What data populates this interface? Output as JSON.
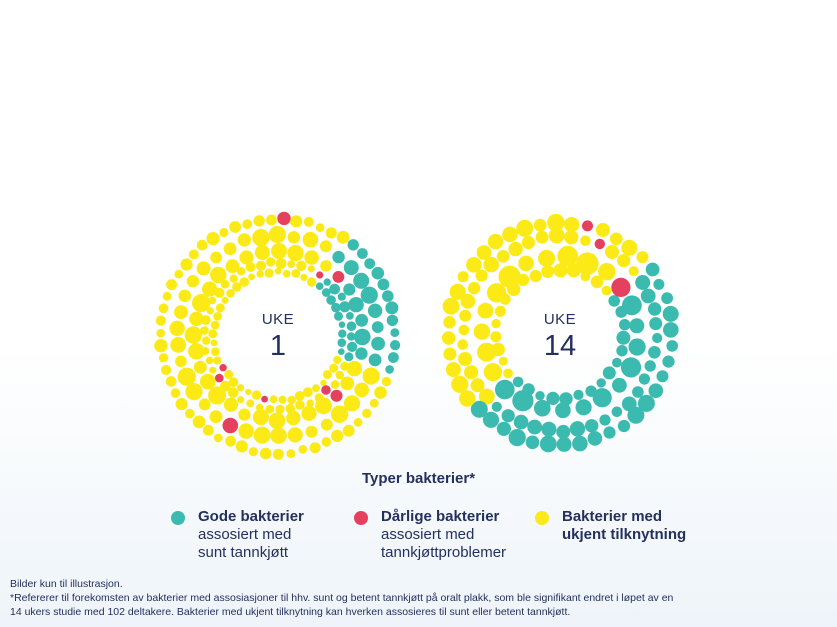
{
  "chart_data": [
    {
      "type": "donut-bubble",
      "center_label": {
        "line1": "UKE",
        "line2": "1"
      },
      "series": [
        {
          "name": "Gode bakterier",
          "share": 0.21
        },
        {
          "name": "Dårlige bakterier",
          "share": 0.03
        },
        {
          "name": "Bakterier med ukjent tilknytning",
          "share": 0.76
        }
      ]
    },
    {
      "type": "donut-bubble",
      "center_label": {
        "line1": "UKE",
        "line2": "14"
      },
      "series": [
        {
          "name": "Gode bakterier",
          "share": 0.48
        },
        {
          "name": "Dårlige bakterier",
          "share": 0.01
        },
        {
          "name": "Bakterier med ukjent tilknytning",
          "share": 0.51
        }
      ]
    }
  ],
  "colors": {
    "good": "#3bbab0",
    "bad": "#e5405e",
    "unknown": "#fbea16",
    "text": "#24305e"
  },
  "legend": {
    "title": "Typer bakterier*",
    "items": [
      {
        "bold": "Gode bakterier",
        "normal_1": "assosiert med",
        "normal_2": "sunt tannkjøtt",
        "color": "#3bbab0"
      },
      {
        "bold": "Dårlige bakterier",
        "normal_1": "assosiert med",
        "normal_2": "tannkjøttproblemer",
        "color": "#e5405e"
      },
      {
        "bold_1": "Bakterier med",
        "bold_2": "ukjent tilknytning",
        "color": "#fbea16"
      }
    ]
  },
  "footnotes": {
    "line1": "Bilder kun til illustrasjon.",
    "line2": "*Refererer til forekomsten av bakterier med assosiasjoner til hhv. sunt og betent tannkjøtt på oralt plakk, som ble signifikant endret i løpet av en",
    "line3": "14 ukers studie med 102 deltakere. Bakterier med ukjent tilknytning kan hverken assosieres til sunt eller betent tannkjøtt."
  }
}
